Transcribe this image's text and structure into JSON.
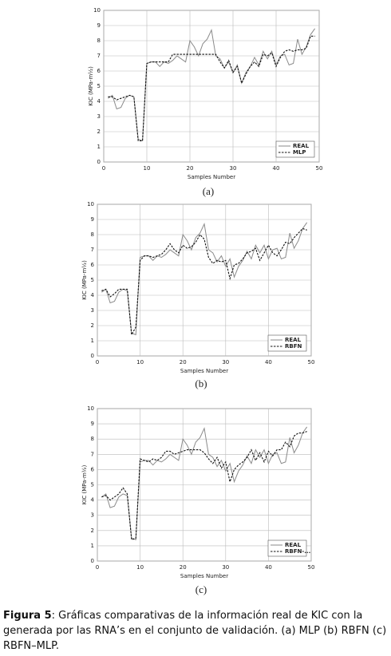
{
  "chart_data": [
    {
      "type": "line",
      "panel_label": "(a)",
      "x_label": "Samples Number",
      "y_label": "KIC (MPa-m½)",
      "x": [
        1,
        2,
        3,
        4,
        5,
        6,
        7,
        8,
        9,
        10,
        11,
        12,
        13,
        14,
        15,
        16,
        17,
        18,
        19,
        20,
        21,
        22,
        23,
        24,
        25,
        26,
        27,
        28,
        29,
        30,
        31,
        32,
        33,
        34,
        35,
        36,
        37,
        38,
        39,
        40,
        41,
        42,
        43,
        44,
        45,
        46,
        47,
        48,
        49
      ],
      "series": [
        {
          "name": "REAL",
          "color": "#8a8a8a",
          "style": "solid",
          "values": [
            4.2,
            4.4,
            3.5,
            3.6,
            4.2,
            4.4,
            4.3,
            1.5,
            1.4,
            6.5,
            6.6,
            6.6,
            6.3,
            6.6,
            6.5,
            6.7,
            7.0,
            6.8,
            6.6,
            8.0,
            7.6,
            7.0,
            7.8,
            8.1,
            8.7,
            7.0,
            6.8,
            6.2,
            6.6,
            5.9,
            6.4,
            5.2,
            5.9,
            6.3,
            6.9,
            6.4,
            7.3,
            6.8,
            7.3,
            6.4,
            7.0,
            7.1,
            6.4,
            6.5,
            8.1,
            7.1,
            7.6,
            8.4,
            8.8
          ]
        },
        {
          "name": "MLP",
          "color": "#111111",
          "style": "dashed",
          "values": [
            4.3,
            4.3,
            4.1,
            4.2,
            4.3,
            4.4,
            4.3,
            1.4,
            1.4,
            6.5,
            6.6,
            6.6,
            6.6,
            6.6,
            6.6,
            7.1,
            7.1,
            7.1,
            7.1,
            7.1,
            7.1,
            7.1,
            7.1,
            7.1,
            7.1,
            7.1,
            6.6,
            6.2,
            6.7,
            5.9,
            6.3,
            5.2,
            5.8,
            6.3,
            6.6,
            6.3,
            7.1,
            7.0,
            7.2,
            6.3,
            6.9,
            7.3,
            7.4,
            7.3,
            7.4,
            7.4,
            7.5,
            8.3,
            8.3
          ]
        }
      ],
      "xlim": [
        0,
        50
      ],
      "xticks": [
        0,
        10,
        20,
        30,
        40,
        50
      ],
      "ylim": [
        0,
        10
      ],
      "yticks": [
        0,
        1,
        2,
        3,
        4,
        5,
        6,
        7,
        8,
        9,
        10
      ],
      "grid": true,
      "legend": "lower-right"
    },
    {
      "type": "line",
      "panel_label": "(b)",
      "x_label": "Samples Number",
      "y_label": "KIC (MPa-m½)",
      "x": [
        1,
        2,
        3,
        4,
        5,
        6,
        7,
        8,
        9,
        10,
        11,
        12,
        13,
        14,
        15,
        16,
        17,
        18,
        19,
        20,
        21,
        22,
        23,
        24,
        25,
        26,
        27,
        28,
        29,
        30,
        31,
        32,
        33,
        34,
        35,
        36,
        37,
        38,
        39,
        40,
        41,
        42,
        43,
        44,
        45,
        46,
        47,
        48,
        49
      ],
      "series": [
        {
          "name": "REAL",
          "color": "#8a8a8a",
          "style": "solid",
          "values": [
            4.2,
            4.4,
            3.5,
            3.6,
            4.2,
            4.4,
            4.3,
            1.5,
            1.4,
            6.5,
            6.6,
            6.6,
            6.3,
            6.6,
            6.5,
            6.7,
            7.0,
            6.8,
            6.6,
            8.0,
            7.6,
            7.0,
            7.8,
            8.1,
            8.7,
            7.0,
            6.8,
            6.2,
            6.6,
            5.9,
            6.4,
            5.2,
            5.9,
            6.3,
            6.9,
            6.4,
            7.3,
            6.8,
            7.3,
            6.4,
            7.0,
            7.1,
            6.4,
            6.5,
            8.1,
            7.1,
            7.6,
            8.4,
            8.8
          ]
        },
        {
          "name": "RBFN",
          "color": "#111111",
          "style": "dashed",
          "values": [
            4.3,
            4.4,
            3.9,
            4.1,
            4.4,
            4.4,
            4.4,
            1.4,
            1.9,
            6.3,
            6.6,
            6.6,
            6.5,
            6.6,
            6.7,
            7.0,
            7.4,
            7.0,
            6.8,
            7.3,
            7.1,
            7.2,
            7.5,
            8.0,
            7.7,
            6.5,
            6.1,
            6.3,
            6.2,
            6.3,
            5.1,
            6.0,
            6.1,
            6.4,
            6.8,
            6.9,
            7.1,
            6.3,
            6.8,
            7.3,
            6.8,
            6.6,
            7.0,
            7.5,
            7.4,
            7.8,
            8.1,
            8.4,
            8.3
          ]
        }
      ],
      "xlim": [
        0,
        50
      ],
      "xticks": [
        0,
        10,
        20,
        30,
        40,
        50
      ],
      "ylim": [
        0,
        10
      ],
      "yticks": [
        0,
        1,
        2,
        3,
        4,
        5,
        6,
        7,
        8,
        9,
        10
      ],
      "grid": true,
      "legend": "lower-right"
    },
    {
      "type": "line",
      "panel_label": "(c)",
      "x_label": "Samples Number",
      "y_label": "KIC (MPa-m½)",
      "x": [
        1,
        2,
        3,
        4,
        5,
        6,
        7,
        8,
        9,
        10,
        11,
        12,
        13,
        14,
        15,
        16,
        17,
        18,
        19,
        20,
        21,
        22,
        23,
        24,
        25,
        26,
        27,
        28,
        29,
        30,
        31,
        32,
        33,
        34,
        35,
        36,
        37,
        38,
        39,
        40,
        41,
        42,
        43,
        44,
        45,
        46,
        47,
        48,
        49
      ],
      "series": [
        {
          "name": "REAL",
          "color": "#8a8a8a",
          "style": "solid",
          "values": [
            4.2,
            4.4,
            3.5,
            3.6,
            4.2,
            4.4,
            4.3,
            1.5,
            1.4,
            6.5,
            6.6,
            6.6,
            6.3,
            6.6,
            6.5,
            6.7,
            7.0,
            6.8,
            6.6,
            8.0,
            7.6,
            7.0,
            7.8,
            8.1,
            8.7,
            7.0,
            6.8,
            6.2,
            6.6,
            5.9,
            6.4,
            5.2,
            5.9,
            6.3,
            6.9,
            6.4,
            7.3,
            6.8,
            7.3,
            6.4,
            7.0,
            7.1,
            6.4,
            6.5,
            8.1,
            7.1,
            7.6,
            8.4,
            8.8
          ]
        },
        {
          "name": "RBFN-...",
          "color": "#111111",
          "style": "dashed",
          "values": [
            4.2,
            4.3,
            4.0,
            4.2,
            4.4,
            4.8,
            4.4,
            1.4,
            1.5,
            6.7,
            6.6,
            6.5,
            6.7,
            6.6,
            6.8,
            7.2,
            7.2,
            7.0,
            7.1,
            7.2,
            7.3,
            7.3,
            7.3,
            7.3,
            7.1,
            6.7,
            6.4,
            6.8,
            6.1,
            6.5,
            5.2,
            6.0,
            6.3,
            6.5,
            6.8,
            7.3,
            6.6,
            7.1,
            6.5,
            7.2,
            6.9,
            7.3,
            7.3,
            7.8,
            7.5,
            8.2,
            8.4,
            8.4,
            8.5
          ]
        }
      ],
      "xlim": [
        0,
        50
      ],
      "xticks": [
        0,
        10,
        20,
        30,
        40,
        50
      ],
      "ylim": [
        0,
        10
      ],
      "yticks": [
        0,
        1,
        2,
        3,
        4,
        5,
        6,
        7,
        8,
        9,
        10
      ],
      "grid": true,
      "legend": "lower-right"
    }
  ],
  "caption": {
    "label": "Figura 5",
    "text": ": Gráficas comparativas de la información real de KIC con la generada por las RNA’s en el conjunto de validación. (a) MLP (b) RBFN (c) RBFN–MLP."
  }
}
